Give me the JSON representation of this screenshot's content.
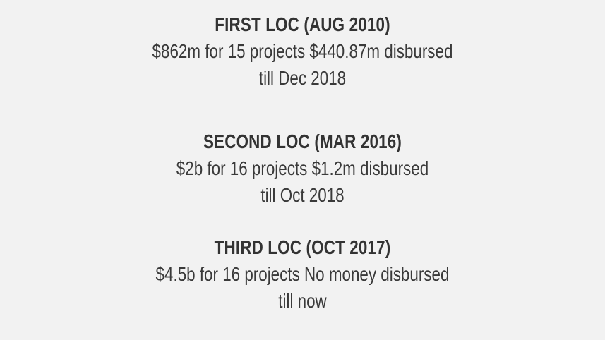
{
  "page": {
    "background_color": "#f2f2f2",
    "text_color": "#3a3a3a",
    "title_color": "#333333"
  },
  "loc_entries": [
    {
      "title": "FIRST LOC (AUG 2010)",
      "details": "$862m for 15 projects $440.87m disbursed",
      "period": "till Dec 2018"
    },
    {
      "title": "SECOND LOC (MAR 2016)",
      "details": "$2b for 16 projects $1.2m disbursed",
      "period": "till Oct 2018"
    },
    {
      "title": "THIRD LOC (OCT 2017)",
      "details": "$4.5b for 16 projects No money disbursed",
      "period": "till now"
    }
  ]
}
